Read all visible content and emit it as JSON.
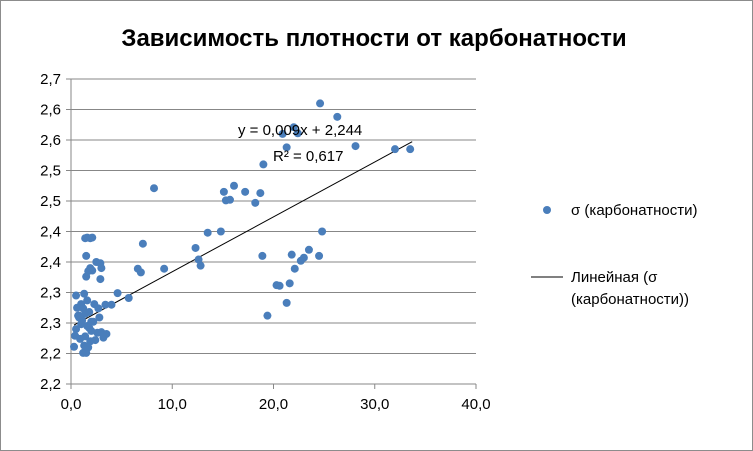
{
  "chart_data": {
    "type": "scatter",
    "title": "Зависимость плотности от карбонатности",
    "xlabel": "",
    "ylabel": "",
    "xlim": [
      0,
      40
    ],
    "ylim": [
      2.15,
      2.65
    ],
    "grid": "horizontal",
    "x_ticks": [
      "0,0",
      "10,0",
      "20,0",
      "30,0",
      "40,0"
    ],
    "y_ticks": [
      "2,2",
      "2,2",
      "2,3",
      "2,3",
      "2,4",
      "2,4",
      "2,5",
      "2,5",
      "2,6",
      "2,6",
      "2,7"
    ],
    "series": [
      {
        "name": "σ (карбонатности)",
        "color": "#4a7ebb",
        "marker": "circle",
        "points": [
          [
            0.3,
            2.211
          ],
          [
            0.4,
            2.229
          ],
          [
            0.5,
            2.24
          ],
          [
            0.6,
            2.275
          ],
          [
            0.7,
            2.262
          ],
          [
            0.8,
            2.259
          ],
          [
            0.9,
            2.224
          ],
          [
            1.0,
            2.248
          ],
          [
            1.1,
            2.254
          ],
          [
            1.2,
            2.201
          ],
          [
            1.3,
            2.213
          ],
          [
            1.4,
            2.228
          ],
          [
            1.5,
            2.201
          ],
          [
            1.6,
            2.245
          ],
          [
            1.7,
            2.21
          ],
          [
            1.8,
            2.242
          ],
          [
            1.9,
            2.22
          ],
          [
            2.0,
            2.237
          ],
          [
            2.2,
            2.252
          ],
          [
            2.4,
            2.222
          ],
          [
            2.6,
            2.234
          ],
          [
            2.8,
            2.259
          ],
          [
            3.0,
            2.235
          ],
          [
            3.2,
            2.226
          ],
          [
            3.5,
            2.232
          ],
          [
            0.5,
            2.295
          ],
          [
            0.8,
            2.262
          ],
          [
            1.0,
            2.281
          ],
          [
            1.2,
            2.274
          ],
          [
            1.4,
            2.265
          ],
          [
            1.6,
            2.287
          ],
          [
            1.8,
            2.268
          ],
          [
            2.0,
            2.252
          ],
          [
            2.3,
            2.281
          ],
          [
            2.7,
            2.274
          ],
          [
            1.3,
            2.298
          ],
          [
            1.5,
            2.326
          ],
          [
            1.7,
            2.335
          ],
          [
            1.9,
            2.34
          ],
          [
            2.1,
            2.336
          ],
          [
            2.5,
            2.35
          ],
          [
            2.9,
            2.322
          ],
          [
            3.0,
            2.34
          ],
          [
            3.4,
            2.28
          ],
          [
            4.0,
            2.28
          ],
          [
            1.4,
            2.389
          ],
          [
            1.6,
            2.39
          ],
          [
            1.9,
            2.389
          ],
          [
            2.1,
            2.39
          ],
          [
            1.5,
            2.36
          ],
          [
            2.9,
            2.348
          ],
          [
            4.6,
            2.299
          ],
          [
            5.7,
            2.291
          ],
          [
            6.6,
            2.339
          ],
          [
            6.9,
            2.333
          ],
          [
            7.1,
            2.38
          ],
          [
            8.2,
            2.471
          ],
          [
            9.2,
            2.339
          ],
          [
            12.3,
            2.373
          ],
          [
            12.6,
            2.354
          ],
          [
            12.8,
            2.344
          ],
          [
            13.5,
            2.398
          ],
          [
            14.8,
            2.4
          ],
          [
            15.1,
            2.465
          ],
          [
            15.3,
            2.451
          ],
          [
            15.7,
            2.452
          ],
          [
            16.1,
            2.475
          ],
          [
            17.2,
            2.465
          ],
          [
            18.2,
            2.447
          ],
          [
            18.7,
            2.463
          ],
          [
            19.0,
            2.51
          ],
          [
            18.9,
            2.36
          ],
          [
            19.4,
            2.262
          ],
          [
            20.3,
            2.312
          ],
          [
            20.6,
            2.311
          ],
          [
            21.3,
            2.283
          ],
          [
            21.6,
            2.315
          ],
          [
            21.8,
            2.362
          ],
          [
            22.1,
            2.339
          ],
          [
            22.7,
            2.352
          ],
          [
            23.0,
            2.357
          ],
          [
            23.5,
            2.37
          ],
          [
            24.5,
            2.36
          ],
          [
            24.8,
            2.4
          ],
          [
            20.9,
            2.56
          ],
          [
            21.3,
            2.538
          ],
          [
            22.0,
            2.571
          ],
          [
            22.4,
            2.561
          ],
          [
            24.6,
            2.61
          ],
          [
            26.3,
            2.588
          ],
          [
            28.1,
            2.54
          ],
          [
            32.0,
            2.535
          ],
          [
            33.5,
            2.535
          ]
        ]
      },
      {
        "name": "Линейная (σ (карбонатности))",
        "color": "#000000",
        "type": "trendline",
        "slope": 0.009,
        "intercept": 2.244,
        "x_range": [
          0.3,
          33.7
        ],
        "equation": "y = 0,009x + 2,244",
        "r_squared": "R² = 0,617"
      }
    ],
    "legend": {
      "position": "right",
      "entries": [
        "σ (карбонатности)",
        "Линейная (σ",
        "(карбонатности))"
      ]
    }
  }
}
